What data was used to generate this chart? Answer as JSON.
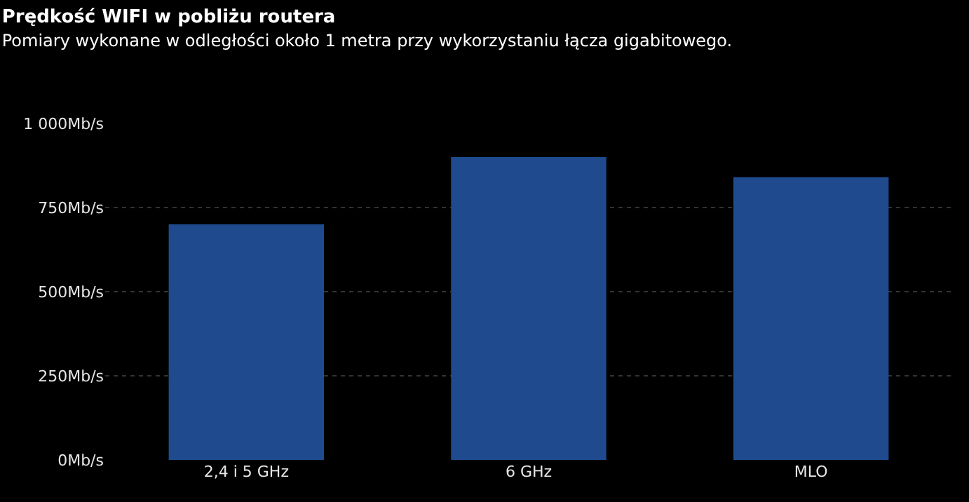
{
  "chart_data": {
    "type": "bar",
    "title": "Prędkość WIFI w pobliżu routera",
    "subtitle": "Pomiary wykonane w odległości około 1 metra przy wykorzystaniu łącza gigabitowego.",
    "categories": [
      "2,4 i 5 GHz",
      "6 GHz",
      "MLO"
    ],
    "values": [
      700,
      900,
      840
    ],
    "color": "#1f4b8e",
    "ylim": [
      0,
      1000
    ],
    "yticks": [
      {
        "value": 0,
        "label": "0Mb/s"
      },
      {
        "value": 250,
        "label": "250Mb/s"
      },
      {
        "value": 500,
        "label": "500Mb/s"
      },
      {
        "value": 750,
        "label": "750Mb/s"
      },
      {
        "value": 1000,
        "label": "1 000Mb/s"
      }
    ],
    "grid": "y"
  }
}
